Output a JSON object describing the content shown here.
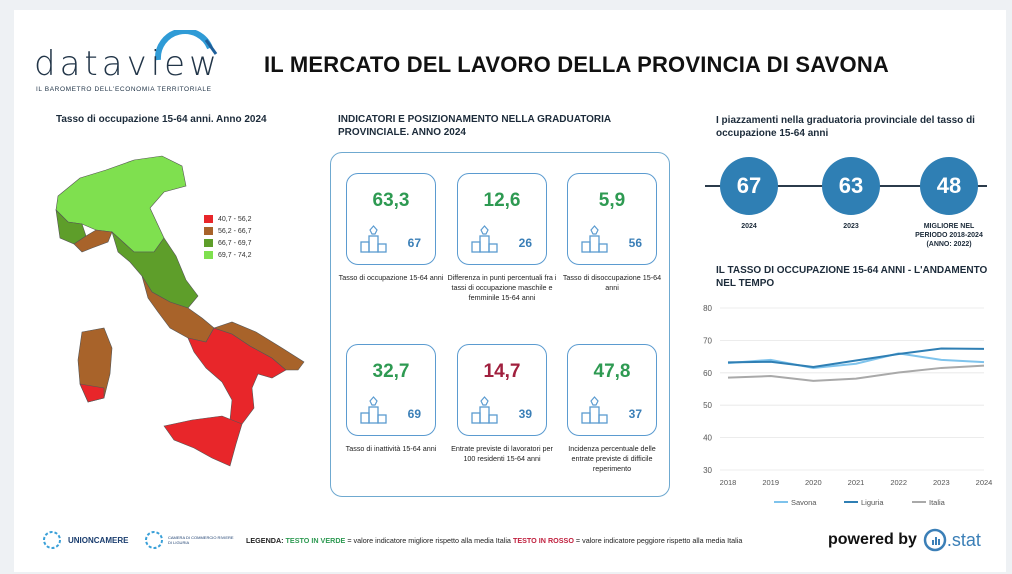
{
  "header": {
    "logo_text": "dataview",
    "logo_subtitle": "IL BAROMETRO DELL'ECONOMIA TERRITORIALE",
    "title": "IL MERCATO DEL LAVORO DELLA PROVINCIA DI SAVONA"
  },
  "map": {
    "title": "Tasso di occupazione 15-64 anni. Anno 2024",
    "legend": [
      {
        "label": "40,7 - 56,2",
        "color": "#e8262a"
      },
      {
        "label": "56,2 - 66,7",
        "color": "#a8632a"
      },
      {
        "label": "66,7 - 69,7",
        "color": "#5e9e2a"
      },
      {
        "label": "69,7 - 74,2",
        "color": "#7fe04f"
      }
    ]
  },
  "indicators": {
    "title": "INDICATORI E POSIZIONAMENTO NELLA GRADUATORIA PROVINCIALE. ANNO 2024",
    "cards": [
      {
        "value": "63,3",
        "rank": "67",
        "color": "green",
        "label": "Tasso di occupazione 15-64 anni"
      },
      {
        "value": "12,6",
        "rank": "26",
        "color": "green",
        "label": "Differenza in punti percentuali fra i tassi di occupazione maschile e femminile 15-64 anni"
      },
      {
        "value": "5,9",
        "rank": "56",
        "color": "green",
        "label": "Tasso di disoccupazione 15-64 anni"
      },
      {
        "value": "32,7",
        "rank": "69",
        "color": "green",
        "label": "Tasso di inattività 15-64 anni"
      },
      {
        "value": "14,7",
        "rank": "39",
        "color": "red",
        "label": "Entrate previste di lavoratori per 100 residenti 15-64 anni"
      },
      {
        "value": "47,8",
        "rank": "37",
        "color": "green",
        "label": "Incidenza percentuale delle entrate previste di difficile reperimento"
      }
    ]
  },
  "ranking": {
    "title": "I piazzamenti nella graduatoria provinciale del tasso di occupazione 15-64 anni",
    "items": [
      {
        "value": "67",
        "label": "2024"
      },
      {
        "value": "63",
        "label": "2023"
      },
      {
        "value": "48",
        "label": "MIGLIORE NEL PERIODO 2018-2024 (ANNO: 2022)"
      }
    ]
  },
  "trend": {
    "title": "IL TASSO DI OCCUPAZIONE 15-64 ANNI - L'ANDAMENTO NEL TEMPO"
  },
  "chart_data": {
    "type": "line",
    "title": "IL TASSO DI OCCUPAZIONE 15-64 ANNI - L'ANDAMENTO NEL TEMPO",
    "x": [
      "2018",
      "2019",
      "2020",
      "2021",
      "2022",
      "2023",
      "2024"
    ],
    "ylim": [
      30,
      80
    ],
    "yticks": [
      "30",
      "40",
      "50",
      "60",
      "70",
      "80"
    ],
    "series": [
      {
        "name": "Savona",
        "color": "#7ec3ec",
        "values": [
          63.0,
          64.0,
          61.5,
          62.8,
          66.0,
          64.0,
          63.3
        ]
      },
      {
        "name": "Liguria",
        "color": "#2f7fb4",
        "values": [
          63.2,
          63.4,
          61.8,
          63.8,
          65.8,
          67.5,
          67.4
        ]
      },
      {
        "name": "Italia",
        "color": "#a9a9a9",
        "values": [
          58.5,
          59.0,
          57.5,
          58.2,
          60.1,
          61.5,
          62.2
        ]
      }
    ]
  },
  "footer": {
    "unioncamere": "UNIONCAMERE",
    "camera_text": "CAMERA DI COMMERCIO RIVIERE DI LIGURIA",
    "legend_prefix": "LEGENDA:",
    "legend_green": "TESTO IN VERDE",
    "legend_mid": "= valore indicatore migliore rispetto alla media Italia",
    "legend_red": "TESTO IN ROSSO",
    "legend_end": "= valore indicatore peggiore rispetto alla media Italia",
    "powered": "powered by",
    "istat": ".stat"
  }
}
